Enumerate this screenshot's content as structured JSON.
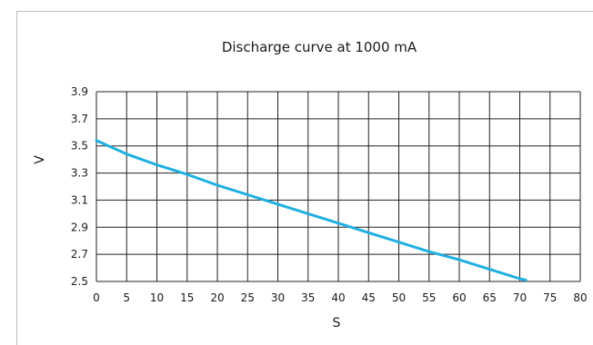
{
  "chart_data": {
    "type": "line",
    "title": "Discharge curve at 1000 mA",
    "xlabel": "S",
    "ylabel": "V",
    "xlim": [
      0,
      80
    ],
    "ylim": [
      2.5,
      3.9
    ],
    "xticks": [
      "0",
      "5",
      "10",
      "15",
      "20",
      "25",
      "30",
      "35",
      "40",
      "45",
      "50",
      "55",
      "60",
      "65",
      "70",
      "75",
      "80"
    ],
    "yticks": [
      "3.9",
      "3.7",
      "3.5",
      "3.3",
      "3.1",
      "2.9",
      "2.7",
      "2.5"
    ],
    "grid": true,
    "series": [
      {
        "color": "#1fb0e0",
        "x": [
          0,
          2,
          5,
          10,
          15,
          20,
          25,
          30,
          35,
          40,
          45,
          50,
          55,
          60,
          65,
          70,
          71
        ],
        "y": [
          3.54,
          3.5,
          3.44,
          3.36,
          3.29,
          3.21,
          3.14,
          3.07,
          3.0,
          2.93,
          2.86,
          2.79,
          2.72,
          2.66,
          2.59,
          2.52,
          2.51
        ]
      }
    ]
  }
}
